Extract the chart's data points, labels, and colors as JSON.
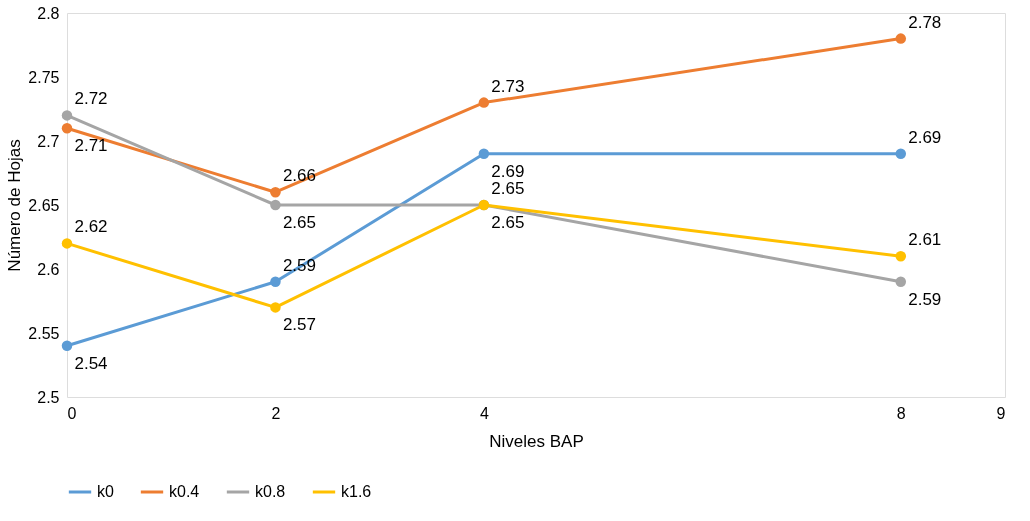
{
  "chart_data": {
    "type": "line",
    "xlabel": "Niveles BAP",
    "ylabel": "Número de Hojas",
    "x": [
      0,
      2,
      4,
      8
    ],
    "series": [
      {
        "name": "k0",
        "color": "#5b9bd5",
        "values": [
          2.54,
          2.59,
          2.69,
          2.69
        ]
      },
      {
        "name": "k0.4",
        "color": "#ed7d31",
        "values": [
          2.71,
          2.66,
          2.73,
          2.78
        ]
      },
      {
        "name": "k0.8",
        "color": "#a5a5a5",
        "values": [
          2.72,
          2.65,
          2.65,
          2.59
        ]
      },
      {
        "name": "k1.6",
        "color": "#ffc000",
        "values": [
          2.62,
          2.57,
          2.65,
          2.61
        ]
      }
    ],
    "xlim": [
      0,
      9
    ],
    "xticks": [
      0,
      2,
      4,
      8,
      9
    ],
    "ylim": [
      2.5,
      2.8
    ],
    "yticks": [
      2.5,
      2.55,
      2.6,
      2.65,
      2.7,
      2.75,
      2.8
    ],
    "grid": false,
    "legend": "bottom",
    "marker": "circle",
    "line_style": "solid",
    "data_labels": true
  }
}
